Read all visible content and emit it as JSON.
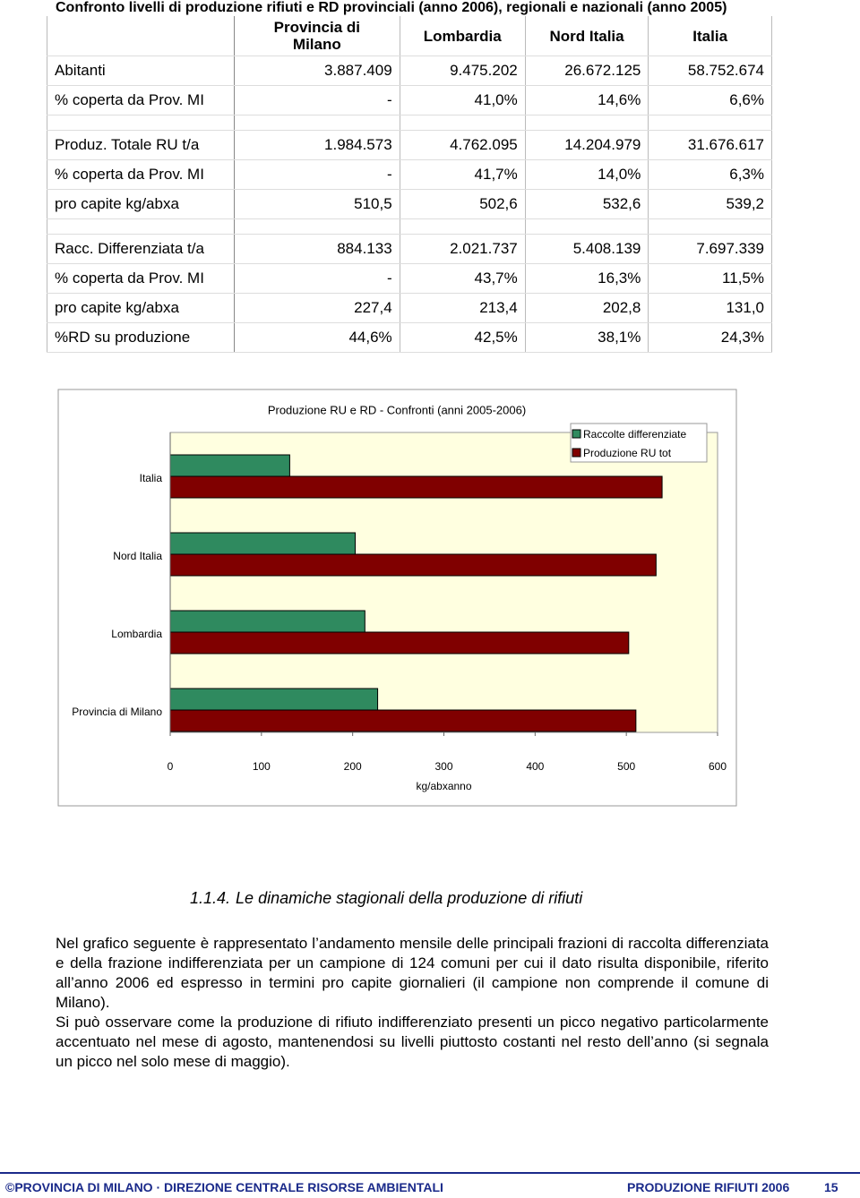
{
  "table": {
    "title": "Confronto livelli di produzione rifiuti e RD provinciali (anno 2006), regionali e nazionali (anno 2005)",
    "header": [
      "Provincia di Milano",
      "Lombardia",
      "Nord Italia",
      "Italia"
    ],
    "groups": [
      [
        [
          "Abitanti",
          "3.887.409",
          "9.475.202",
          "26.672.125",
          "58.752.674"
        ],
        [
          "% coperta da Prov. MI",
          "-",
          "41,0%",
          "14,6%",
          "6,6%"
        ]
      ],
      [
        [
          "Produz. Totale RU t/a",
          "1.984.573",
          "4.762.095",
          "14.204.979",
          "31.676.617"
        ],
        [
          "% coperta da Prov. MI",
          "-",
          "41,7%",
          "14,0%",
          "6,3%"
        ],
        [
          "pro capite kg/abxa",
          "510,5",
          "502,6",
          "532,6",
          "539,2"
        ]
      ],
      [
        [
          "Racc. Differenziata t/a",
          "884.133",
          "2.021.737",
          "5.408.139",
          "7.697.339"
        ],
        [
          "% coperta da Prov. MI",
          "-",
          "43,7%",
          "16,3%",
          "11,5%"
        ],
        [
          "pro capite kg/abxa",
          "227,4",
          "213,4",
          "202,8",
          "131,0"
        ],
        [
          "%RD su produzione",
          "44,6%",
          "42,5%",
          "38,1%",
          "24,3%"
        ]
      ]
    ]
  },
  "chart_data": {
    "type": "hbar",
    "title": "Produzione RU e RD - Confronti (anni 2005-2006)",
    "categories": [
      "Italia",
      "Nord Italia",
      "Lombardia",
      "Provincia di Milano"
    ],
    "series": [
      {
        "name": "Raccolte differenziate",
        "color": "#2f8a5f",
        "values": [
          131.0,
          202.8,
          213.4,
          227.4
        ]
      },
      {
        "name": "Produzione RU tot",
        "color": "#800000",
        "values": [
          539.2,
          532.6,
          502.6,
          510.5
        ]
      }
    ],
    "x_label": "kg/abxanno",
    "xlim": [
      0,
      600
    ],
    "xticks": [
      0,
      100,
      200,
      300,
      400,
      500,
      600
    ],
    "legend": "upper right",
    "background": "#ffffe0"
  },
  "section": {
    "number": "1.1.4.",
    "title": "Le dinamiche stagionali della produzione di rifiuti",
    "paragraphs": [
      "Nel grafico seguente è rappresentato l’andamento mensile delle principali frazioni di raccolta differenziata e della frazione indifferenziata per un campione di 124 comuni per cui il dato risulta disponibile, riferito all’anno 2006 ed espresso in termini pro capite giornalieri (il campione non comprende il comune di Milano).",
      "Si può osservare come la produzione di rifiuto indifferenziato presenti un picco negativo particolarmente accentuato nel mese di agosto, mantenendosi su livelli piuttosto costanti nel resto dell’anno (si segnala un picco nel solo mese di maggio)."
    ]
  },
  "footer": {
    "left": "©PROVINCIA DI MILANO · DIREZIONE CENTRALE RISORSE AMBIENTALI",
    "right": "PRODUZIONE RIFIUTI 2006",
    "page": "15"
  }
}
